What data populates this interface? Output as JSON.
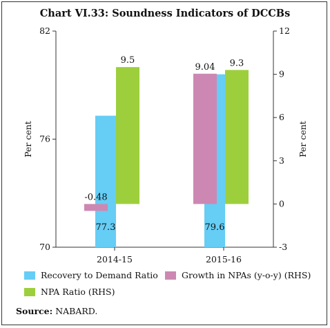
{
  "title": "Chart VI.33: Soundness Indicators of DCCBs",
  "source_label": "Source:",
  "source_text": "NABARD.",
  "colors": {
    "recovery": "#66cdf5",
    "growth_npa": "#cc88b2",
    "npa_ratio": "#9dcf3c"
  },
  "chart_data": {
    "type": "bar",
    "categories": [
      "2014-15",
      "2015-16"
    ],
    "series": [
      {
        "name": "Recovery to Demand Ratio",
        "axis": "left",
        "values": [
          77.3,
          79.6
        ]
      },
      {
        "name": "Growth in NPAs (y-o-y) (RHS)",
        "axis": "right",
        "values": [
          -0.48,
          9.04
        ]
      },
      {
        "name": "NPA Ratio (RHS)",
        "axis": "right",
        "values": [
          9.5,
          9.3
        ]
      }
    ],
    "data_labels": {
      "recovery": [
        "77.3",
        "79.6"
      ],
      "growth_npa": [
        "-0.48",
        "9.04"
      ],
      "npa_ratio": [
        "9.5",
        "9.3"
      ]
    },
    "ylabel_left": "Per cent",
    "ylabel_right": "Per cent",
    "ylim_left": [
      70,
      82
    ],
    "ylim_right": [
      -3,
      12
    ],
    "yticks_left": [
      "70",
      "76",
      "82"
    ],
    "yticks_right": [
      "-3",
      "0",
      "3",
      "6",
      "9",
      "12"
    ],
    "grid": false,
    "legend_position": "bottom"
  }
}
